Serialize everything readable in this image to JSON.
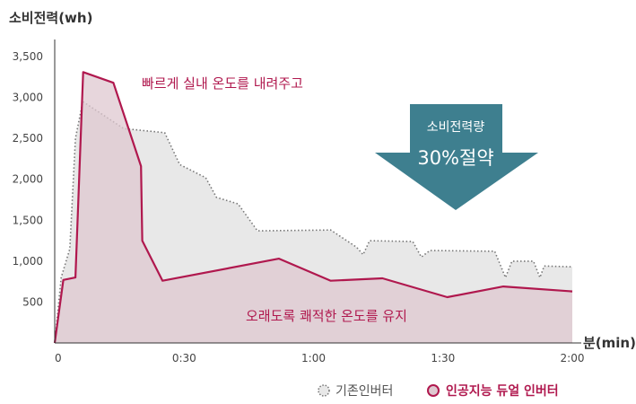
{
  "chart_data": {
    "type": "area",
    "ylabel": "소비전력(wh)",
    "xlabel": "분(min)",
    "xlim": [
      0,
      120
    ],
    "ylim": [
      0,
      3500
    ],
    "x_ticks": [
      {
        "value": 0,
        "label": "0"
      },
      {
        "value": 30,
        "label": "0:30"
      },
      {
        "value": 60,
        "label": "1:00"
      },
      {
        "value": 90,
        "label": "1:30"
      },
      {
        "value": 120,
        "label": "2:00"
      }
    ],
    "y_ticks": [
      {
        "value": 500,
        "label": "500"
      },
      {
        "value": 1000,
        "label": "1,000"
      },
      {
        "value": 1500,
        "label": "1,500"
      },
      {
        "value": 2000,
        "label": "2,000"
      },
      {
        "value": 2500,
        "label": "2,500"
      },
      {
        "value": 3000,
        "label": "3,000"
      },
      {
        "value": 3500,
        "label": "3,500"
      }
    ],
    "grid": false,
    "series": [
      {
        "name": "기존인버터",
        "style": "dotted",
        "line_color": "#777777",
        "fill_color": "#e8e8e8",
        "points": [
          [
            0,
            0
          ],
          [
            1.5,
            800
          ],
          [
            3.5,
            1150
          ],
          [
            4.8,
            2500
          ],
          [
            6.5,
            2950
          ],
          [
            16,
            2620
          ],
          [
            25.5,
            2570
          ],
          [
            29,
            2180
          ],
          [
            35,
            2020
          ],
          [
            37.5,
            1780
          ],
          [
            42.5,
            1700
          ],
          [
            47,
            1370
          ],
          [
            64,
            1380
          ],
          [
            70,
            1170
          ],
          [
            71.5,
            1080
          ],
          [
            73,
            1250
          ],
          [
            83,
            1240
          ],
          [
            85,
            1050
          ],
          [
            87,
            1130
          ],
          [
            102,
            1120
          ],
          [
            104.5,
            800
          ],
          [
            106,
            1000
          ],
          [
            111,
            1000
          ],
          [
            112.5,
            800
          ],
          [
            113.5,
            940
          ],
          [
            120,
            930
          ]
        ]
      },
      {
        "name": "인공지능 듀얼 인버터",
        "style": "solid",
        "line_color": "#b0184e",
        "fill_color": "#dfc8d0",
        "points": [
          [
            0,
            0
          ],
          [
            2,
            770
          ],
          [
            4.8,
            800
          ],
          [
            6.6,
            3310
          ],
          [
            13.6,
            3180
          ],
          [
            20,
            2160
          ],
          [
            20.3,
            1250
          ],
          [
            25,
            760
          ],
          [
            52,
            1030
          ],
          [
            64,
            760
          ],
          [
            76,
            790
          ],
          [
            91,
            560
          ],
          [
            104,
            690
          ],
          [
            120,
            630
          ]
        ]
      }
    ],
    "annotations": {
      "fast": "빠르게 실내 온도를 내려주고",
      "long": "오래도록 쾌적한 온도를 유지"
    },
    "saving_arrow": {
      "label": "소비전력량",
      "value": "30%절약",
      "color": "#3e7f8f"
    },
    "legend_position": "bottom-right"
  }
}
